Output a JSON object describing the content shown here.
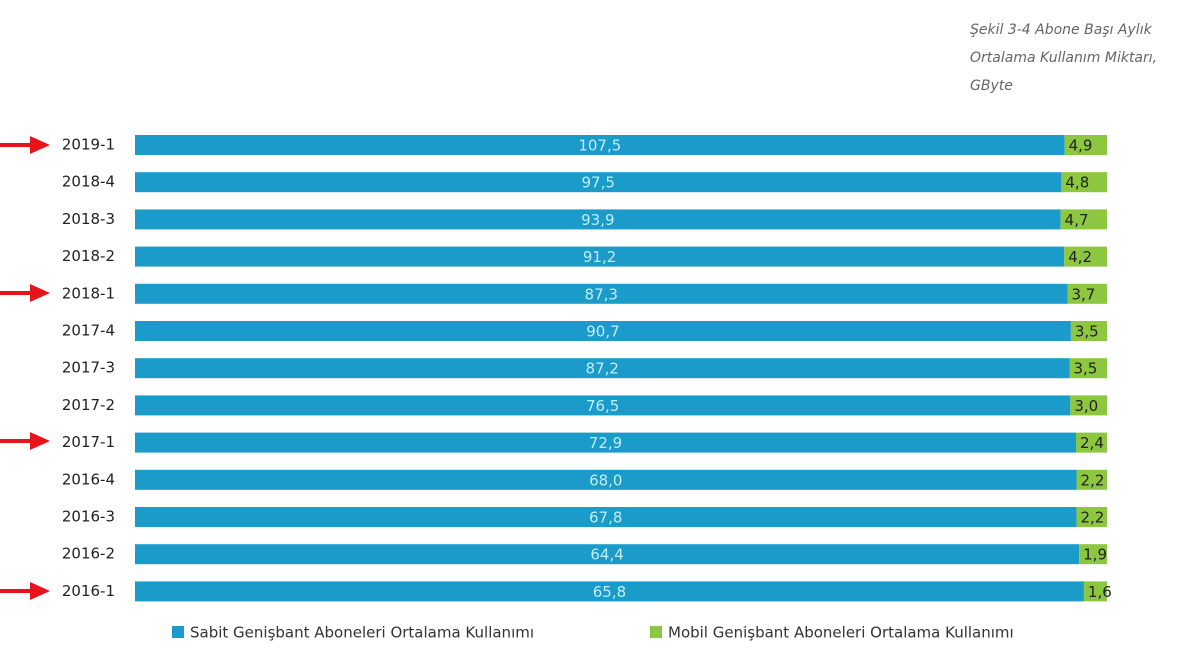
{
  "chart_data": {
    "type": "bar",
    "orientation": "horizontal",
    "stacked": "percent",
    "title": "Şekil 3-4 Abone Başı Aylık Ortalama Kullanım Miktarı, GByte",
    "categories": [
      "2019-1",
      "2018-4",
      "2018-3",
      "2018-2",
      "2018-1",
      "2017-4",
      "2017-3",
      "2017-2",
      "2017-1",
      "2016-4",
      "2016-3",
      "2016-2",
      "2016-1"
    ],
    "series": [
      {
        "name": "Sabit Genişbant Aboneleri Ortalama Kullanımı",
        "color": "#1a9bc9",
        "values": [
          107.5,
          97.5,
          93.9,
          91.2,
          87.3,
          90.7,
          87.2,
          76.5,
          72.9,
          68.0,
          67.8,
          64.4,
          65.8
        ],
        "value_labels": [
          "107,5",
          "97,5",
          "93,9",
          "91,2",
          "87,3",
          "90,7",
          "87,2",
          "76,5",
          "72,9",
          "68,0",
          "67,8",
          "64,4",
          "65,8"
        ]
      },
      {
        "name": "Mobil Genişbant Aboneleri Ortalama Kullanımı",
        "color": "#8dc63f",
        "values": [
          4.9,
          4.8,
          4.7,
          4.2,
          3.7,
          3.5,
          3.5,
          3.0,
          2.4,
          2.2,
          2.2,
          1.9,
          1.6
        ],
        "value_labels": [
          "4,9",
          "4,8",
          "4,7",
          "4,2",
          "3,7",
          "3,5",
          "3,5",
          "3,0",
          "2,4",
          "2,2",
          "2,2",
          "1,9",
          "1,6"
        ]
      }
    ]
  }
}
